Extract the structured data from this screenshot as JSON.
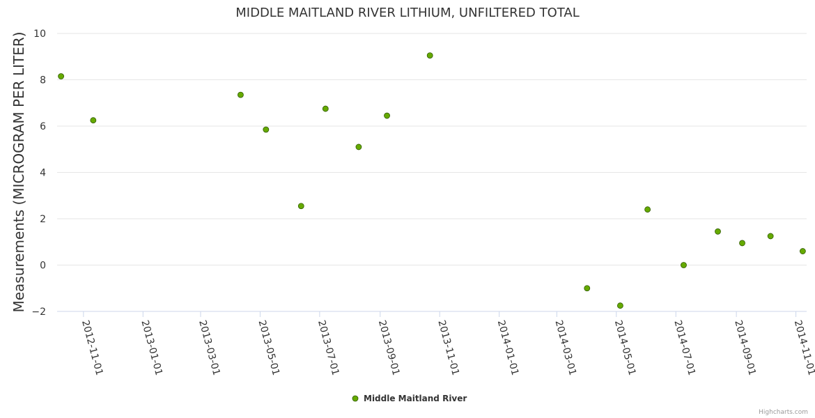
{
  "chart_data": {
    "type": "scatter",
    "title": "MIDDLE MAITLAND RIVER LITHIUM, UNFILTERED TOTAL",
    "xlabel": "",
    "ylabel": "Measurements (MICROGRAM PER LITER)",
    "ylim": [
      -2,
      10
    ],
    "yticks": [
      -2,
      0,
      2,
      4,
      6,
      8,
      10
    ],
    "xlim": [
      "2012-10-05",
      "2014-11-12"
    ],
    "xticks": [
      "2012-11-01",
      "2013-01-01",
      "2013-03-01",
      "2013-05-01",
      "2013-07-01",
      "2013-09-01",
      "2013-11-01",
      "2014-01-01",
      "2014-03-01",
      "2014-05-01",
      "2014-07-01",
      "2014-09-01",
      "2014-11-01"
    ],
    "grid": true,
    "legend_position": "bottom-center",
    "series": [
      {
        "name": "Middle Maitland River",
        "color": "#66aa00",
        "points": [
          {
            "x": "2012-10-09",
            "y": 8.15
          },
          {
            "x": "2012-11-11",
            "y": 6.25
          },
          {
            "x": "2013-04-11",
            "y": 7.35
          },
          {
            "x": "2013-05-07",
            "y": 5.85
          },
          {
            "x": "2013-06-12",
            "y": 2.55
          },
          {
            "x": "2013-07-07",
            "y": 6.75
          },
          {
            "x": "2013-08-10",
            "y": 5.1
          },
          {
            "x": "2013-09-08",
            "y": 6.45
          },
          {
            "x": "2013-10-22",
            "y": 9.05
          },
          {
            "x": "2014-04-01",
            "y": -1.0
          },
          {
            "x": "2014-05-05",
            "y": -1.75
          },
          {
            "x": "2014-06-02",
            "y": 2.4
          },
          {
            "x": "2014-07-09",
            "y": 0.0
          },
          {
            "x": "2014-08-13",
            "y": 1.45
          },
          {
            "x": "2014-09-07",
            "y": 0.95
          },
          {
            "x": "2014-10-06",
            "y": 1.25
          },
          {
            "x": "2014-11-08",
            "y": 0.6
          }
        ]
      }
    ]
  },
  "credits": "Highcharts.com"
}
